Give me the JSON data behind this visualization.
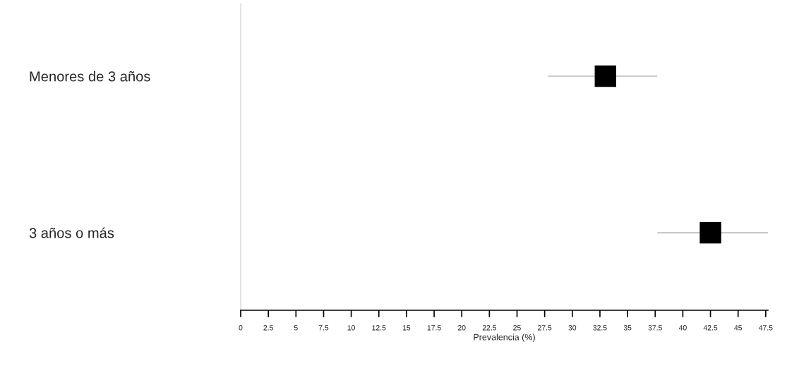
{
  "chart_data": {
    "type": "scatter",
    "orientation": "horizontal",
    "xlabel": "Prevalencia (%)",
    "categories": [
      "Menores de 3 años",
      "3 años o más"
    ],
    "color": "#000000",
    "values": [
      33.0,
      42.5
    ],
    "errors": [
      [
        27.8,
        37.7
      ],
      [
        37.7,
        47.7
      ]
    ],
    "marker": "square",
    "xlim": [
      0,
      47.7
    ],
    "xticks": [
      0,
      2.5,
      5,
      7.5,
      10,
      12.5,
      15,
      17.5,
      20,
      22.5,
      25,
      27.5,
      30,
      32.5,
      35,
      37.5,
      40,
      42.5,
      45,
      47.5
    ],
    "grid": false,
    "legend": false
  }
}
